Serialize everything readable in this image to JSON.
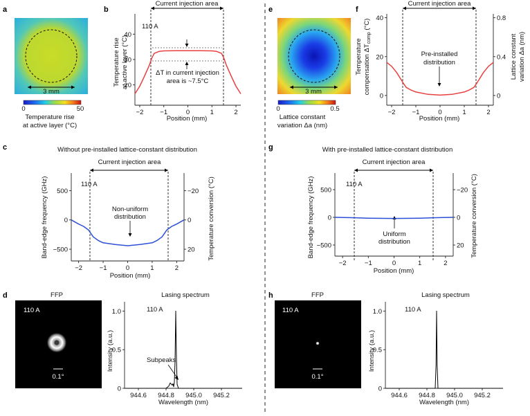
{
  "panels": {
    "a": {
      "letter": "a",
      "scale_text": "3 mm",
      "colorbar": {
        "min": "0",
        "max": "50",
        "label_line1": "Temperature rise",
        "label_line2": "at active layer (°C)"
      }
    },
    "b": {
      "letter": "b",
      "title": "Current injection area",
      "current": "110 A",
      "ylabel_line1": "Temperature rise",
      "ylabel_line2": "at active layer (°C)",
      "xlabel": "Position (mm)",
      "annotation_line1": "ΔT in current injection",
      "annotation_line2": "area is ~7.5°C",
      "yticks": [
        "20",
        "30",
        "40"
      ],
      "xticks": [
        "−2",
        "−1",
        "0",
        "1",
        "2"
      ]
    },
    "c": {
      "letter": "c",
      "header": "Without pre-installed lattice-constant distribution",
      "title": "Current injection area",
      "current": "110 A",
      "ylabel": "Band-edge frequency (GHz)",
      "ylabel_right": "Temperature conversion (°C)",
      "xlabel": "Position (mm)",
      "annotation_line1": "Non-uniform",
      "annotation_line2": "distribution",
      "yticks": [
        "−500",
        "0",
        "500"
      ],
      "yticks_right": [
        "20",
        "0",
        "−20"
      ],
      "xticks": [
        "−2",
        "−1",
        "0",
        "1",
        "2"
      ]
    },
    "d": {
      "letter": "d",
      "ffp_title": "FFP",
      "ffp_current": "110 A",
      "ffp_scale": "0.1°",
      "spectrum_title": "Lasing spectrum",
      "spectrum_current": "110 A",
      "ylabel": "Intensity (a.u.)",
      "xlabel": "Wavelength (nm)",
      "annotation": "Subpeaks",
      "yticks": [
        "0",
        "0.5",
        "1.0"
      ],
      "xticks": [
        "944.6",
        "944.8",
        "945.0",
        "945.2"
      ]
    },
    "e": {
      "letter": "e",
      "scale_text": "3 mm",
      "colorbar": {
        "min": "0",
        "max": "0.5",
        "label_line1": "Lattice constant",
        "label_line2": "variation Δa (nm)"
      }
    },
    "f": {
      "letter": "f",
      "title": "Current injection area",
      "ylabel_line1": "Temperature",
      "ylabel_line2": "compensation ΔT",
      "ylabel_sub": "comp",
      "ylabel_unit": " (°C)",
      "ylabel_right_line1": "Lattice constant",
      "ylabel_right_line2": "variation Δa (nm)",
      "xlabel": "Position (mm)",
      "annotation_line1": "Pre-installed",
      "annotation_line2": "distribution",
      "yticks": [
        "0",
        "20",
        "40"
      ],
      "yticks_right": [
        "0",
        "0.4",
        "0.8"
      ],
      "xticks": [
        "−2",
        "−1",
        "0",
        "1",
        "2"
      ]
    },
    "g": {
      "letter": "g",
      "header": "With pre-installed lattice-constant distribution",
      "title": "Current injection area",
      "current": "110 A",
      "ylabel": "Band-edge frequency (GHz)",
      "ylabel_right": "Temperature conversion (°C)",
      "xlabel": "Position (mm)",
      "annotation_line1": "Uniform",
      "annotation_line2": "distribution",
      "yticks": [
        "−500",
        "0",
        "500"
      ],
      "yticks_right": [
        "20",
        "0",
        "−20"
      ],
      "xticks": [
        "−2",
        "−1",
        "0",
        "1",
        "2"
      ]
    },
    "h": {
      "letter": "h",
      "ffp_title": "FFP",
      "ffp_current": "110 A",
      "ffp_scale": "0.1°",
      "spectrum_title": "Lasing spectrum",
      "spectrum_current": "110 A",
      "ylabel": "Intensity (a.u.)",
      "xlabel": "Wavelength (nm)",
      "yticks": [
        "0",
        "0.5",
        "1.0"
      ],
      "xticks": [
        "944.6",
        "944.8",
        "945.0",
        "945.2"
      ]
    }
  },
  "colors": {
    "red_curve": "#e8403e",
    "blue_curve": "#2b4fd8",
    "axis": "#222222"
  },
  "chart_data": [
    {
      "panel": "b",
      "type": "line",
      "xlim": [
        -2.2,
        2.2
      ],
      "ylim": [
        12,
        48
      ],
      "x": [
        -2.2,
        -2.0,
        -1.8,
        -1.6,
        -1.5,
        -1.4,
        -1.2,
        -1.0,
        -0.5,
        0,
        0.5,
        1.0,
        1.2,
        1.4,
        1.5,
        1.6,
        1.8,
        2.0,
        2.2
      ],
      "y": [
        16.5,
        19.5,
        23.5,
        27.8,
        30.5,
        32.4,
        33.2,
        33.4,
        33.5,
        33.5,
        33.5,
        33.4,
        33.2,
        32.4,
        30.5,
        27.8,
        23.5,
        19.5,
        16.5
      ],
      "reference_lines": [
        33.5,
        26
      ]
    },
    {
      "panel": "c",
      "type": "line",
      "xlim": [
        -2.3,
        2.3
      ],
      "ylim": [
        -700,
        800
      ],
      "x": [
        -2.3,
        -2.0,
        -1.8,
        -1.6,
        -1.5,
        -1.4,
        -1.2,
        -1.0,
        -0.5,
        0,
        0.5,
        1.0,
        1.2,
        1.4,
        1.5,
        1.6,
        1.8,
        2.0,
        2.3
      ],
      "y": [
        0,
        -70,
        -110,
        -170,
        -230,
        -290,
        -350,
        -390,
        -420,
        -440,
        -420,
        -390,
        -350,
        -290,
        -230,
        -170,
        -110,
        -70,
        0
      ]
    },
    {
      "panel": "f",
      "type": "line",
      "xlim": [
        -2.2,
        2.2
      ],
      "ylim": [
        -5,
        42
      ],
      "x": [
        -2.2,
        -2.0,
        -1.8,
        -1.6,
        -1.5,
        -1.4,
        -1.2,
        -1.0,
        -0.5,
        0,
        0.5,
        1.0,
        1.2,
        1.4,
        1.5,
        1.6,
        1.8,
        2.0,
        2.2
      ],
      "y": [
        17,
        15,
        12,
        8,
        6,
        4.2,
        2.8,
        1.8,
        0.6,
        0.2,
        0.6,
        1.8,
        2.8,
        4.2,
        6,
        8,
        12,
        15,
        17
      ]
    },
    {
      "panel": "g",
      "type": "line",
      "xlim": [
        -2.3,
        2.3
      ],
      "ylim": [
        -700,
        800
      ],
      "x": [
        -2.3,
        -1.5,
        -1.0,
        0,
        1.0,
        1.5,
        2.3
      ],
      "y": [
        0,
        -8,
        -15,
        -20,
        -15,
        -8,
        0
      ]
    },
    {
      "panel": "d",
      "type": "line",
      "xlim": [
        944.5,
        945.35
      ],
      "ylim": [
        0,
        1.12
      ],
      "x": [
        944.5,
        944.8,
        944.82,
        944.83,
        944.845,
        944.85,
        944.855,
        944.86,
        944.865,
        944.87,
        944.875,
        944.88,
        944.89,
        945.35
      ],
      "y": [
        0,
        0,
        0.03,
        0.07,
        0.04,
        0.06,
        0.02,
        0.08,
        0.35,
        1.0,
        0.4,
        0.05,
        0,
        0
      ]
    },
    {
      "panel": "h",
      "type": "line",
      "xlim": [
        944.5,
        945.35
      ],
      "ylim": [
        0,
        1.12
      ],
      "x": [
        944.5,
        944.86,
        944.866,
        944.87,
        944.874,
        944.88,
        945.35
      ],
      "y": [
        0,
        0,
        0.3,
        1.0,
        0.3,
        0,
        0
      ]
    }
  ]
}
